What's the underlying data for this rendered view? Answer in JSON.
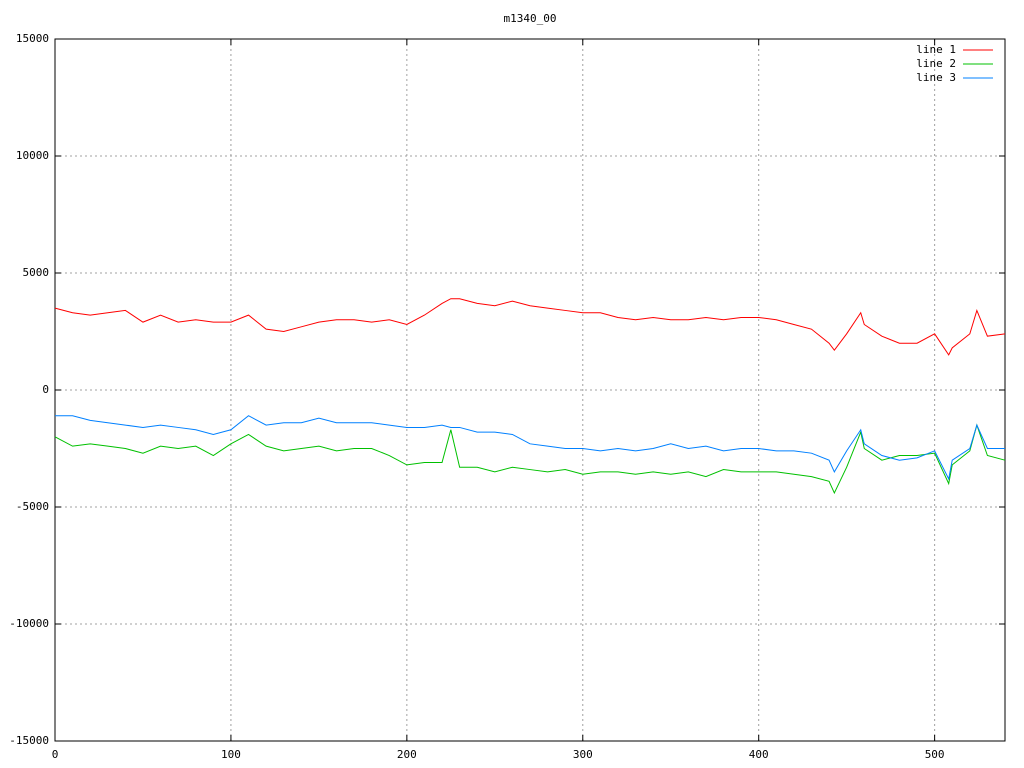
{
  "chart_data": {
    "type": "line",
    "title": "m1340_00",
    "x": [
      0,
      10,
      20,
      30,
      40,
      50,
      60,
      70,
      80,
      90,
      100,
      110,
      120,
      130,
      140,
      150,
      160,
      170,
      180,
      190,
      200,
      210,
      220,
      225,
      230,
      240,
      250,
      260,
      270,
      280,
      290,
      300,
      310,
      320,
      330,
      340,
      350,
      360,
      370,
      380,
      390,
      400,
      410,
      420,
      430,
      440,
      443,
      450,
      458,
      460,
      470,
      480,
      490,
      500,
      508,
      510,
      520,
      524,
      530,
      540
    ],
    "series": [
      {
        "name": "line 1",
        "color": "#ff0000",
        "values": [
          3500,
          3300,
          3200,
          3300,
          3400,
          2900,
          3200,
          2900,
          3000,
          2900,
          2900,
          3200,
          2600,
          2500,
          2700,
          2900,
          3000,
          3000,
          2900,
          3000,
          2800,
          3200,
          3700,
          3900,
          3900,
          3700,
          3600,
          3800,
          3600,
          3500,
          3400,
          3300,
          3300,
          3100,
          3000,
          3100,
          3000,
          3000,
          3100,
          3000,
          3100,
          3100,
          3000,
          2800,
          2600,
          2000,
          1700,
          2400,
          3300,
          2800,
          2300,
          2000,
          2000,
          2400,
          1500,
          1800,
          2400,
          3400,
          2300,
          2400
        ]
      },
      {
        "name": "line 2",
        "color": "#00c000",
        "values": [
          -2000,
          -2400,
          -2300,
          -2400,
          -2500,
          -2700,
          -2400,
          -2500,
          -2400,
          -2800,
          -2300,
          -1900,
          -2400,
          -2600,
          -2500,
          -2400,
          -2600,
          -2500,
          -2500,
          -2800,
          -3200,
          -3100,
          -3100,
          -1700,
          -3300,
          -3300,
          -3500,
          -3300,
          -3400,
          -3500,
          -3400,
          -3600,
          -3500,
          -3500,
          -3600,
          -3500,
          -3600,
          -3500,
          -3700,
          -3400,
          -3500,
          -3500,
          -3500,
          -3600,
          -3700,
          -3900,
          -4400,
          -3300,
          -1800,
          -2500,
          -3000,
          -2800,
          -2800,
          -2700,
          -4000,
          -3200,
          -2600,
          -1500,
          -2800,
          -3000
        ]
      },
      {
        "name": "line 3",
        "color": "#0080ff",
        "values": [
          -1100,
          -1100,
          -1300,
          -1400,
          -1500,
          -1600,
          -1500,
          -1600,
          -1700,
          -1900,
          -1700,
          -1100,
          -1500,
          -1400,
          -1400,
          -1200,
          -1400,
          -1400,
          -1400,
          -1500,
          -1600,
          -1600,
          -1500,
          -1600,
          -1600,
          -1800,
          -1800,
          -1900,
          -2300,
          -2400,
          -2500,
          -2500,
          -2600,
          -2500,
          -2600,
          -2500,
          -2300,
          -2500,
          -2400,
          -2600,
          -2500,
          -2500,
          -2600,
          -2600,
          -2700,
          -3000,
          -3500,
          -2600,
          -1700,
          -2300,
          -2800,
          -3000,
          -2900,
          -2600,
          -3800,
          -3000,
          -2500,
          -1500,
          -2500,
          -2500
        ]
      }
    ],
    "xlim": [
      0,
      540
    ],
    "xticks": [
      0,
      100,
      200,
      300,
      400,
      500
    ],
    "ylim": [
      -15000,
      15000
    ],
    "yticks": [
      -15000,
      -10000,
      -5000,
      0,
      5000,
      10000,
      15000
    ],
    "grid": true,
    "legend": "top-right"
  }
}
